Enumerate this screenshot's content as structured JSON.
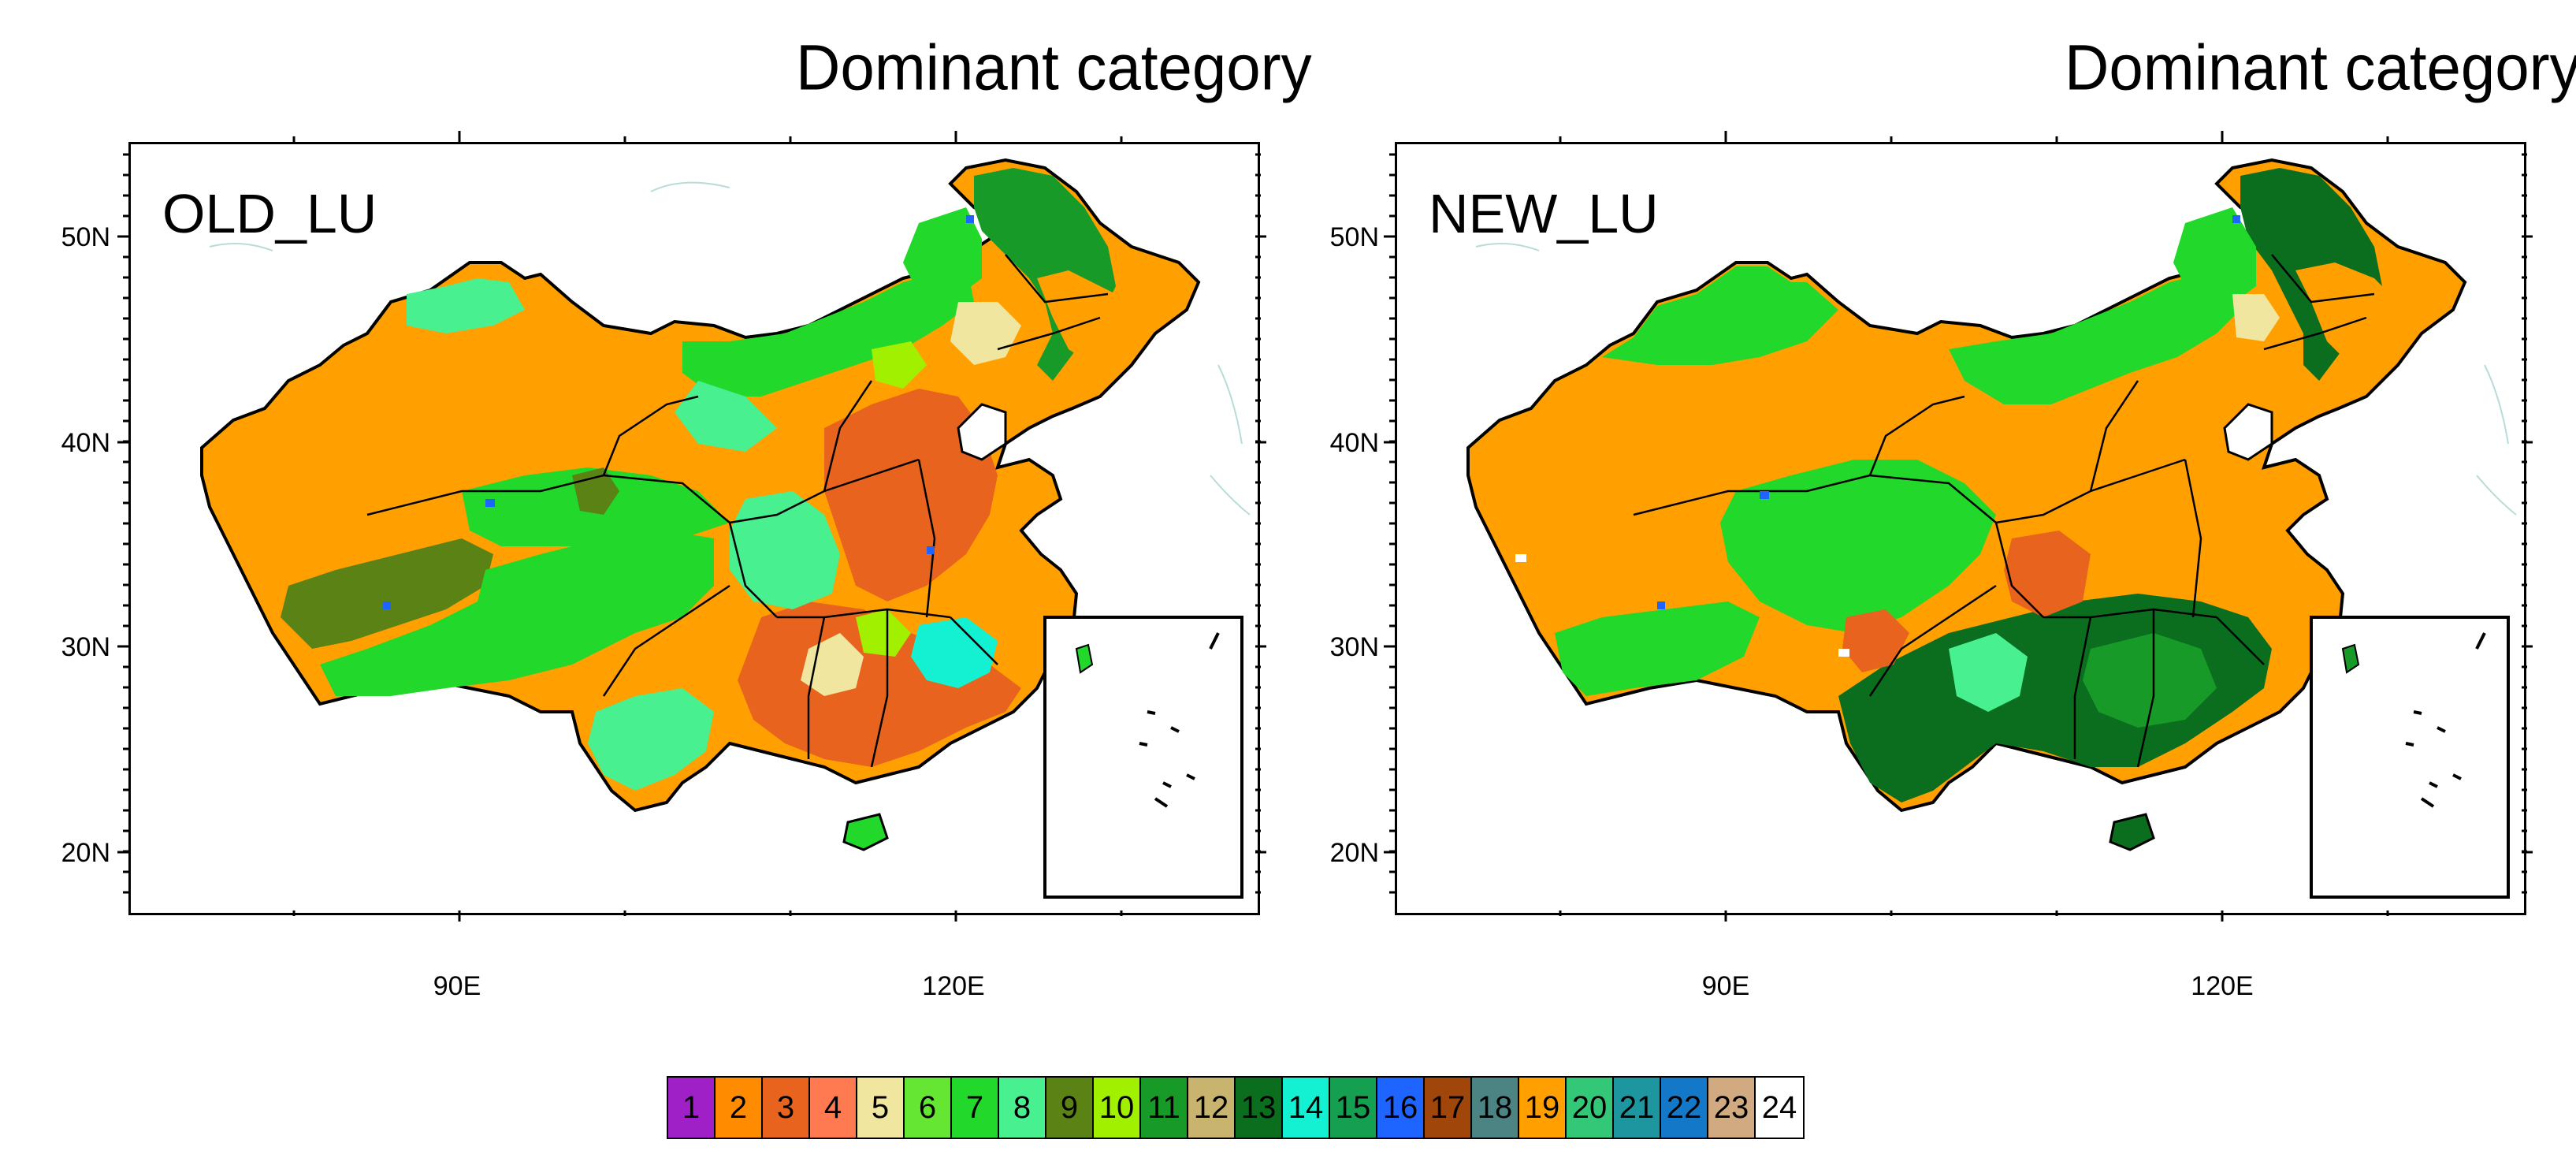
{
  "panels": [
    {
      "title": "Dominant category",
      "label": "OLD_LU"
    },
    {
      "title": "Dominant category",
      "label": "NEW_LU"
    }
  ],
  "axes": {
    "lat_ticks": [
      "50N",
      "40N",
      "30N",
      "20N"
    ],
    "lon_ticks": [
      "90E",
      "120E"
    ]
  },
  "legend": {
    "categories": [
      "1",
      "2",
      "3",
      "4",
      "5",
      "6",
      "7",
      "8",
      "9",
      "10",
      "11",
      "12",
      "13",
      "14",
      "15",
      "16",
      "17",
      "18",
      "19",
      "20",
      "21",
      "22",
      "23",
      "24"
    ],
    "colors": [
      "#a020c8",
      "#ff8c00",
      "#e8641e",
      "#ff7a50",
      "#f0e6a0",
      "#64e632",
      "#22d82a",
      "#48f090",
      "#5a8214",
      "#a0f000",
      "#189a28",
      "#c8b46e",
      "#0a6e1e",
      "#14f0d2",
      "#14a050",
      "#1e64ff",
      "#a0460a",
      "#4c8484",
      "#ffa000",
      "#32c878",
      "#1e96a0",
      "#1478c8",
      "#d2aa82",
      "#ffffff"
    ]
  },
  "colors": {
    "orange": "#ffa000",
    "dark_orange": "#e8641e",
    "green": "#22d82a",
    "light_green": "#48f090",
    "dark_green": "#0a6e1e",
    "olive": "#5a8214",
    "forest": "#189a28",
    "cyan": "#14f0d2",
    "tan": "#f0e6a0",
    "blue": "#1e64ff"
  }
}
